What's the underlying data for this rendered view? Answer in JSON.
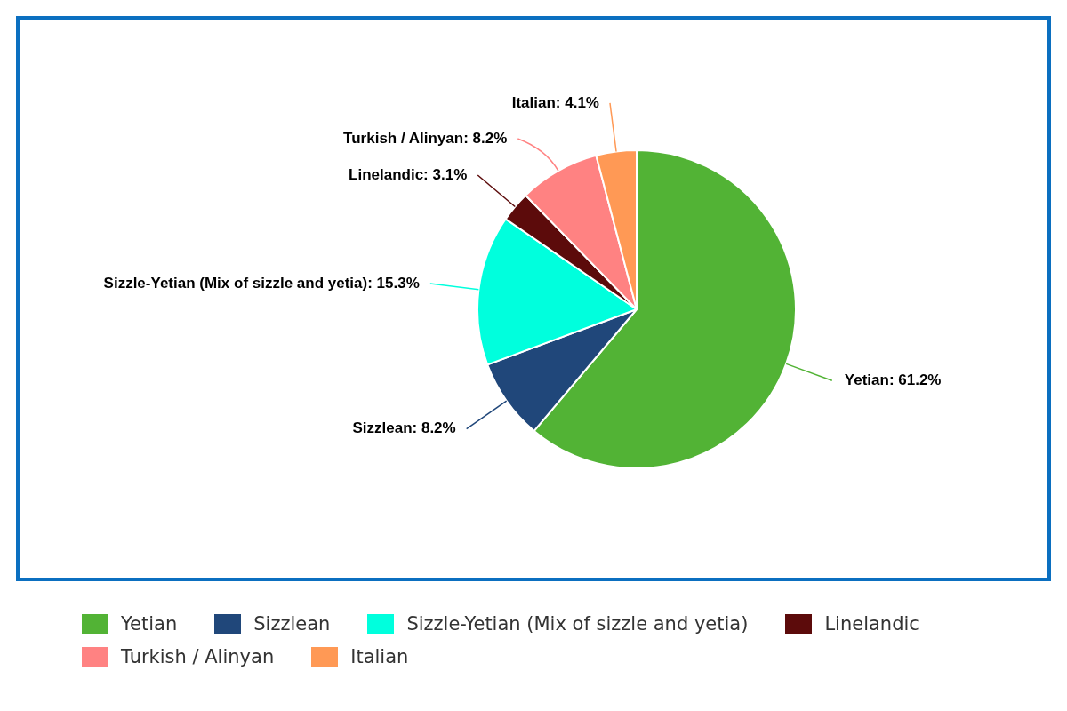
{
  "chart_data": {
    "type": "pie",
    "categories": [
      "Yetian",
      "Sizzlean",
      "Sizzle-Yetian (Mix of sizzle and yetia)",
      "Linelandic",
      "Turkish / Alinyan",
      "Italian"
    ],
    "values": [
      61.2,
      8.2,
      15.3,
      3.1,
      8.2,
      4.1
    ],
    "colors": [
      "#52b335",
      "#20477a",
      "#00ffdd",
      "#5c0b0b",
      "#ff8282",
      "#ff9955"
    ],
    "value_labels": [
      "Yetian: 61.2%",
      "Sizzlean: 8.2%",
      "Sizzle-Yetian (Mix of sizzle and yetia): 15.3%",
      "Linelandic: 3.1%",
      "Turkish / Alinyan: 8.2%",
      "Italian: 4.1%"
    ],
    "legend": "bottom"
  }
}
